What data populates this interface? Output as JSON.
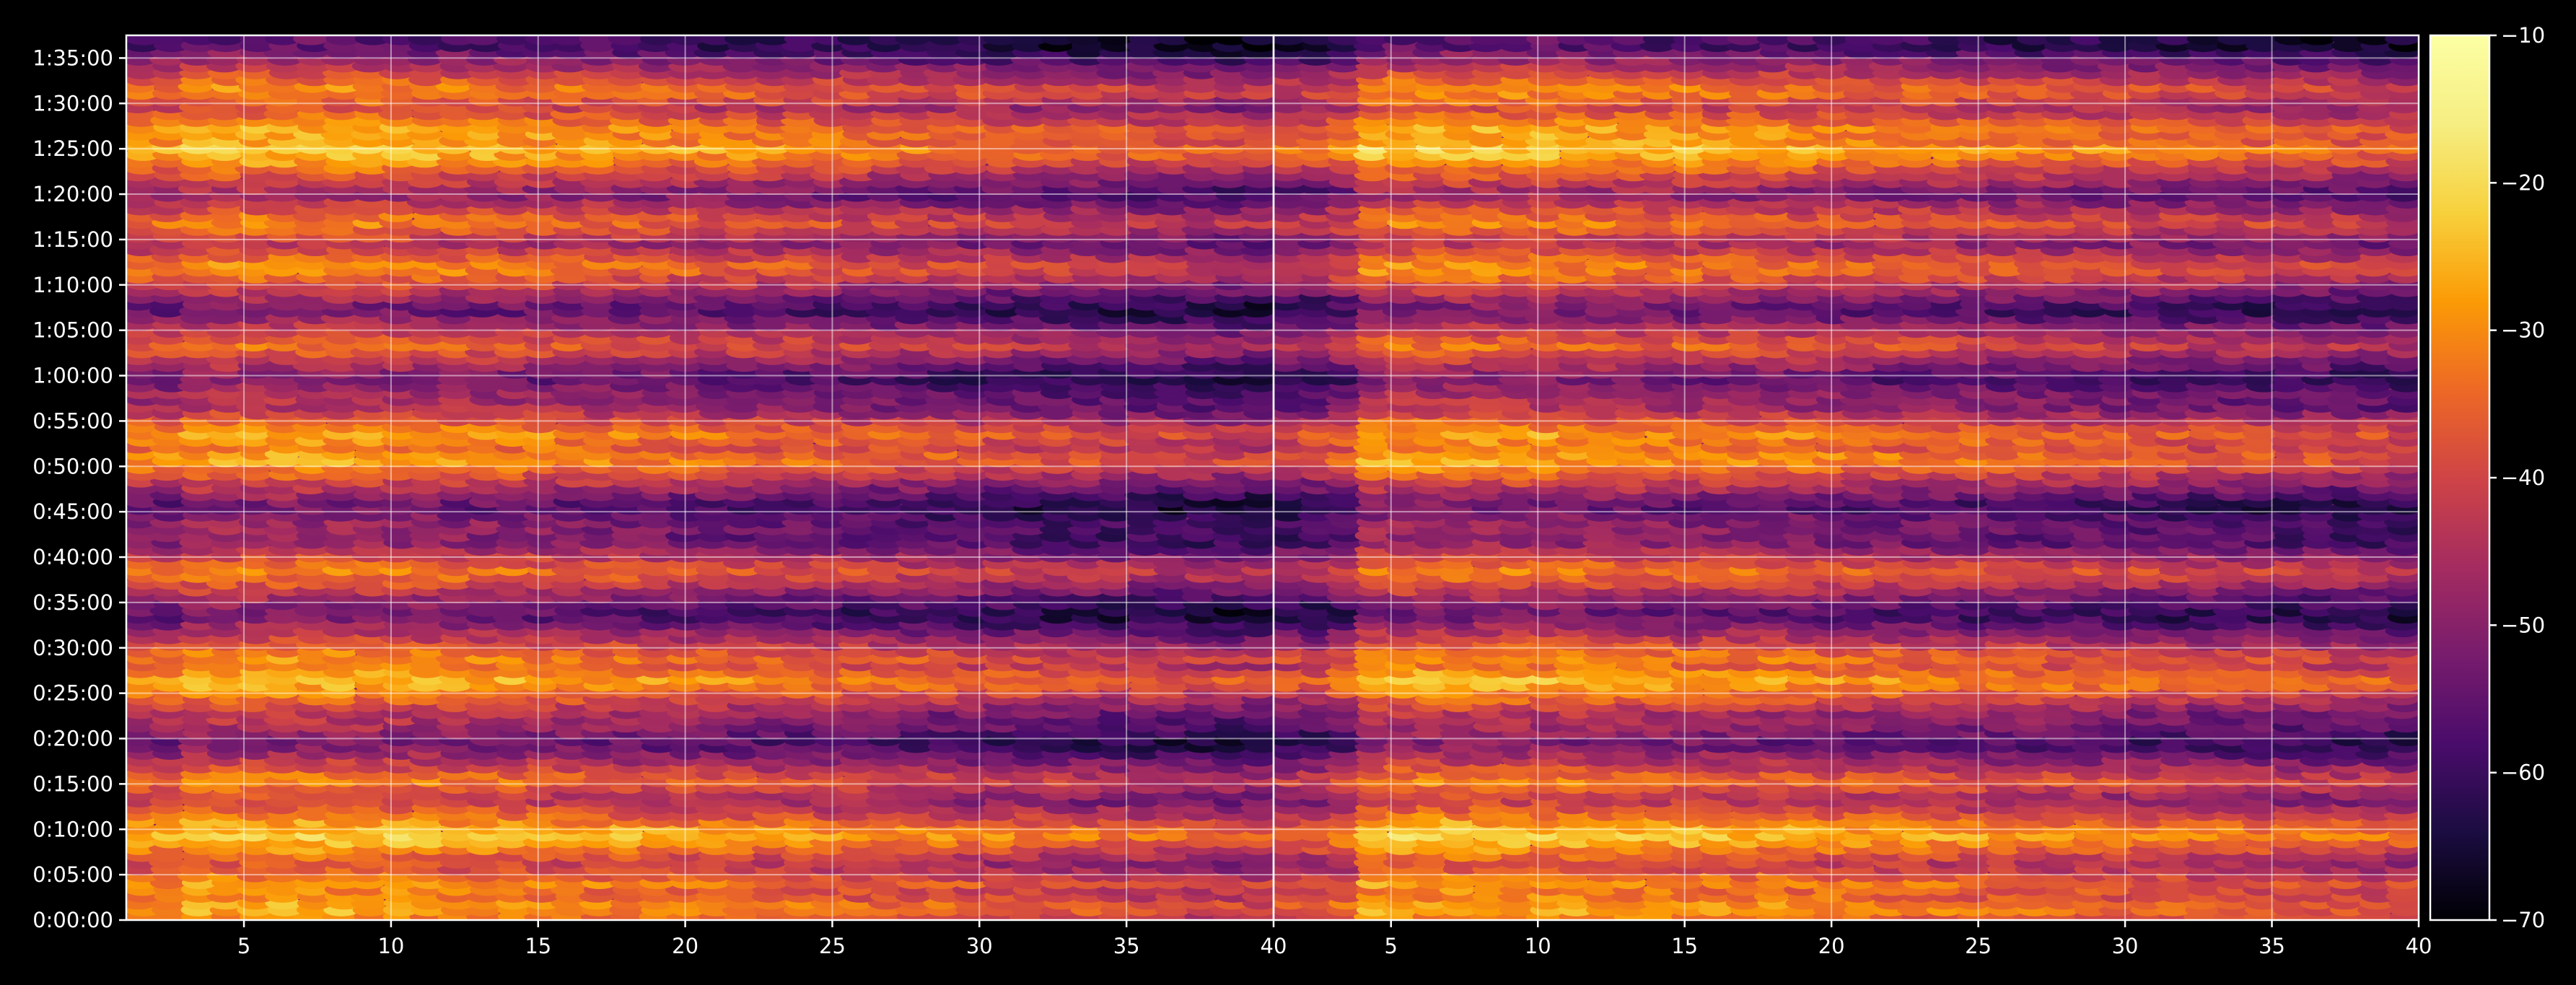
{
  "chart_data": {
    "type": "heatmap",
    "title": "",
    "xlabel": "",
    "ylabel": "",
    "colormap": "inferno",
    "background": "#000000",
    "grid": true,
    "x_ticks": [
      "5",
      "10",
      "15",
      "20",
      "25",
      "30",
      "35",
      "40",
      "5",
      "10",
      "15",
      "20",
      "25",
      "30",
      "35",
      "40"
    ],
    "y_ticks": [
      "0:00:00",
      "0:05:00",
      "0:10:00",
      "0:15:00",
      "0:20:00",
      "0:25:00",
      "0:30:00",
      "0:35:00",
      "0:40:00",
      "0:45:00",
      "0:50:00",
      "0:55:00",
      "1:00:00",
      "1:05:00",
      "1:10:00",
      "1:15:00",
      "1:20:00",
      "1:25:00",
      "1:30:00",
      "1:35:00"
    ],
    "panels": [
      {
        "x_range": [
          1,
          40
        ],
        "y_range_min": [
          0,
          97.5
        ]
      },
      {
        "x_range": [
          1,
          40
        ],
        "y_range_min": [
          0,
          97.5
        ]
      }
    ],
    "colorbar": {
      "ticks": [
        "−70",
        "−60",
        "−50",
        "−40",
        "−30",
        "−20",
        "−10"
      ],
      "range": [
        -70,
        -10
      ]
    },
    "row_intensity_peaks_min": [
      {
        "time_min": 1.5,
        "level_db": -24
      },
      {
        "time_min": 4,
        "level_db": -27
      },
      {
        "time_min": 9.5,
        "level_db": -20
      },
      {
        "time_min": 15.5,
        "level_db": -30
      },
      {
        "time_min": 26.5,
        "level_db": -23
      },
      {
        "time_min": 29,
        "level_db": -28
      },
      {
        "time_min": 38.5,
        "level_db": -30
      },
      {
        "time_min": 51,
        "level_db": -25
      },
      {
        "time_min": 53.5,
        "level_db": -26
      },
      {
        "time_min": 63.5,
        "level_db": -32
      },
      {
        "time_min": 72,
        "level_db": -28
      },
      {
        "time_min": 77,
        "level_db": -30
      },
      {
        "time_min": 85,
        "level_db": -21
      },
      {
        "time_min": 87,
        "level_db": -24
      },
      {
        "time_min": 91.5,
        "level_db": -28
      }
    ]
  }
}
